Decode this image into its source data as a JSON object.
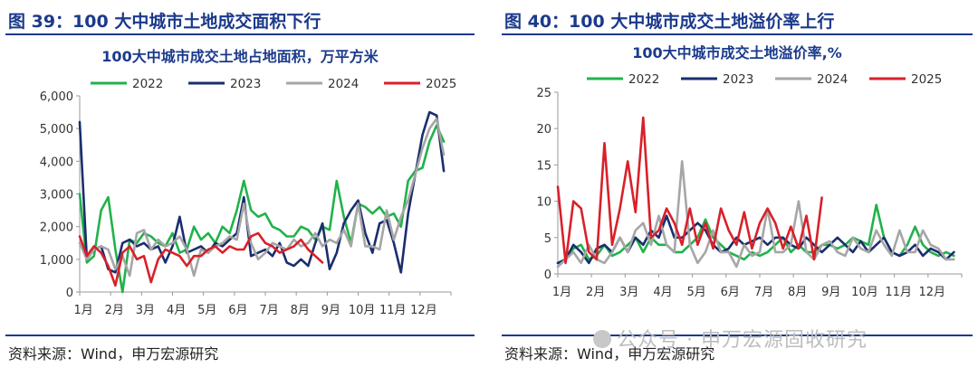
{
  "left": {
    "fig_title": "图 39：100 大中城市土地成交面积下行",
    "source": "资料来源：Wind，申万宏源研究"
  },
  "right": {
    "fig_title": "图 40：100 大中城市成交土地溢价率上行",
    "source": "资料来源：Wind，申万宏源研究"
  },
  "watermark": "公众号 · 申万宏源固收研究",
  "colors": {
    "2022": "#21b24b",
    "2023": "#1a2e6e",
    "2024": "#a6a6a6",
    "2025": "#d9202a",
    "accent": "#1b3a8c"
  },
  "chart_data": [
    {
      "type": "line",
      "title": "100大中城市成交土地占地面积，万平方米",
      "x_tick_labels": [
        "1月",
        "2月",
        "3月",
        "4月",
        "5月",
        "6月",
        "7月",
        "8月",
        "9月",
        "10月",
        "11月",
        "12月"
      ],
      "ylim": [
        0,
        6000
      ],
      "y_ticks": [
        0,
        1000,
        2000,
        3000,
        4000,
        5000,
        6000
      ],
      "y_tick_labels": [
        "0",
        "1,000",
        "2,000",
        "3,000",
        "4,000",
        "5,000",
        "6,000"
      ],
      "xlim": [
        0,
        52
      ],
      "legend_position": "top",
      "series": [
        {
          "name": "2022",
          "x": [
            0,
            1,
            2,
            3,
            4,
            5,
            6,
            7,
            8,
            9,
            10,
            11,
            12,
            13,
            14,
            15,
            16,
            17,
            18,
            19,
            20,
            21,
            22,
            23,
            24,
            25,
            26,
            27,
            28,
            29,
            30,
            31,
            32,
            33,
            34,
            35,
            36,
            37,
            38,
            39,
            40,
            41,
            42,
            43,
            44,
            45,
            46,
            47,
            48,
            49,
            50,
            51
          ],
          "values": [
            3000,
            900,
            1100,
            2500,
            2900,
            1300,
            0,
            1600,
            1500,
            1800,
            1700,
            1500,
            1400,
            1800,
            1200,
            1300,
            2000,
            1600,
            1800,
            1500,
            2000,
            1800,
            2500,
            3400,
            2500,
            2300,
            2400,
            2000,
            1900,
            1700,
            1700,
            2000,
            1900,
            1600,
            2000,
            1900,
            3400,
            2300,
            1500,
            2700,
            2600,
            2400,
            2600,
            2300,
            2400,
            2000,
            3400,
            3700,
            3800,
            4600,
            5100,
            4600
          ]
        },
        {
          "name": "2023",
          "x": [
            0,
            1,
            2,
            3,
            4,
            5,
            6,
            7,
            8,
            9,
            10,
            11,
            12,
            13,
            14,
            15,
            16,
            17,
            18,
            19,
            20,
            21,
            22,
            23,
            24,
            25,
            26,
            27,
            28,
            29,
            30,
            31,
            32,
            33,
            34,
            35,
            36,
            37,
            38,
            39,
            40,
            41,
            42,
            43,
            44,
            45,
            46,
            47,
            48,
            49,
            50,
            51
          ],
          "values": [
            5200,
            1000,
            1300,
            1400,
            700,
            600,
            1500,
            1600,
            1400,
            1500,
            1300,
            1400,
            900,
            1400,
            2300,
            1200,
            1300,
            1400,
            1200,
            1500,
            1400,
            1600,
            1800,
            2900,
            1100,
            1200,
            1300,
            1100,
            1500,
            900,
            800,
            1000,
            800,
            1500,
            2100,
            700,
            1200,
            2100,
            2500,
            2800,
            1800,
            1200,
            2100,
            2200,
            1500,
            600,
            2400,
            3600,
            4800,
            5500,
            5400,
            3700
          ]
        },
        {
          "name": "2024",
          "x": [
            0,
            1,
            2,
            3,
            4,
            5,
            6,
            7,
            8,
            9,
            10,
            11,
            12,
            13,
            14,
            15,
            16,
            17,
            18,
            19,
            20,
            21,
            22,
            23,
            24,
            25,
            26,
            27,
            28,
            29,
            30,
            31,
            32,
            33,
            34,
            35,
            36,
            37,
            38,
            39,
            40,
            41,
            42,
            43,
            44,
            45,
            46,
            47,
            48,
            49,
            50,
            51
          ],
          "values": [
            1500,
            1000,
            1300,
            1400,
            1300,
            700,
            1100,
            500,
            1800,
            1900,
            1300,
            1600,
            1400,
            1500,
            1700,
            1300,
            500,
            1300,
            1200,
            1400,
            1500,
            1700,
            1600,
            2700,
            1500,
            1000,
            1200,
            1500,
            1400,
            1300,
            1600,
            1400,
            1500,
            1800,
            1400,
            1600,
            1500,
            1900,
            1400,
            2700,
            1400,
            1400,
            1300,
            2500,
            1600,
            2300,
            2800,
            3600,
            4400,
            5000,
            5300,
            4200
          ]
        },
        {
          "name": "2025",
          "x": [
            0,
            1,
            2,
            3,
            4,
            5,
            6,
            7,
            8,
            9,
            10,
            11,
            12,
            13,
            14,
            15,
            16,
            17,
            18,
            19,
            20,
            21,
            22,
            23,
            24,
            25,
            26,
            27,
            28,
            29,
            30,
            31,
            32,
            33,
            34
          ],
          "values": [
            1700,
            1100,
            1400,
            1200,
            800,
            200,
            1200,
            1400,
            1000,
            1100,
            300,
            1000,
            1300,
            1200,
            1100,
            800,
            1100,
            1100,
            1300,
            1400,
            1200,
            1400,
            1300,
            1300,
            1700,
            1800,
            1500,
            1400,
            1200,
            1300,
            1400,
            1600,
            1300,
            1100,
            900
          ]
        }
      ]
    },
    {
      "type": "line",
      "title": "100大中城市成交土地溢价率,%",
      "x_tick_labels": [
        "1月",
        "2月",
        "3月",
        "4月",
        "5月",
        "6月",
        "7月",
        "8月",
        "9月",
        "10月",
        "11月",
        "12月"
      ],
      "ylim": [
        0,
        25
      ],
      "y_ticks": [
        0,
        5,
        10,
        15,
        20,
        25
      ],
      "y_tick_labels": [
        "0",
        "5",
        "10",
        "15",
        "20",
        "25"
      ],
      "xlim": [
        0,
        52
      ],
      "legend_position": "top",
      "series": [
        {
          "name": "2022",
          "x": [
            0,
            1,
            2,
            3,
            4,
            5,
            6,
            7,
            8,
            9,
            10,
            11,
            12,
            13,
            14,
            15,
            16,
            17,
            18,
            19,
            20,
            21,
            22,
            23,
            24,
            25,
            26,
            27,
            28,
            29,
            30,
            31,
            32,
            33,
            34,
            35,
            36,
            37,
            38,
            39,
            40,
            41,
            42,
            43,
            44,
            45,
            46,
            47,
            48,
            49,
            50,
            51
          ],
          "values": [
            1.5,
            2,
            3.5,
            4,
            2,
            2.5,
            4,
            2.5,
            3,
            4,
            5,
            3,
            5,
            4,
            4,
            3,
            3,
            4,
            5,
            7.5,
            5,
            4,
            3,
            2.5,
            2,
            3,
            2.5,
            3,
            4,
            5,
            3,
            4,
            3,
            3,
            4,
            4,
            3.5,
            4,
            5,
            4.5,
            4,
            9.5,
            5,
            3,
            2.5,
            4,
            6.5,
            4,
            3,
            2.5,
            3,
            2.5
          ]
        },
        {
          "name": "2023",
          "x": [
            0,
            1,
            2,
            3,
            4,
            5,
            6,
            7,
            8,
            9,
            10,
            11,
            12,
            13,
            14,
            15,
            16,
            17,
            18,
            19,
            20,
            21,
            22,
            23,
            24,
            25,
            26,
            27,
            28,
            29,
            30,
            31,
            32,
            33,
            34,
            35,
            36,
            37,
            38,
            39,
            40,
            41,
            42,
            43,
            44,
            45,
            46,
            47,
            48,
            49,
            50,
            51
          ],
          "values": [
            1.5,
            2,
            4,
            3,
            1.5,
            3.5,
            4,
            3,
            5,
            3,
            5,
            4,
            6,
            5,
            8,
            5,
            5,
            6,
            7,
            6,
            4,
            3,
            3.5,
            5,
            4,
            4.5,
            5,
            4,
            5,
            5,
            4,
            3.5,
            5,
            4,
            3,
            4,
            5,
            4,
            3,
            4.5,
            3,
            4,
            5,
            3,
            2.5,
            3,
            4,
            2.5,
            3.5,
            3,
            2,
            3
          ]
        },
        {
          "name": "2024",
          "x": [
            0,
            1,
            2,
            3,
            4,
            5,
            6,
            7,
            8,
            9,
            10,
            11,
            12,
            13,
            14,
            15,
            16,
            17,
            18,
            19,
            20,
            21,
            22,
            23,
            24,
            25,
            26,
            27,
            28,
            29,
            30,
            31,
            32,
            33,
            34,
            35,
            36,
            37,
            38,
            39,
            40,
            41,
            42,
            43,
            44,
            45,
            46,
            47,
            48,
            49,
            50,
            51
          ],
          "values": [
            1,
            2,
            3,
            1.5,
            4,
            2,
            1.5,
            3,
            5,
            3,
            6,
            7,
            4,
            8,
            4,
            3,
            15.5,
            4,
            1.5,
            3,
            6,
            3,
            3,
            1,
            4,
            2.5,
            3,
            9,
            3,
            3,
            4,
            10,
            3,
            2,
            4,
            4.5,
            3,
            2.5,
            5,
            3.5,
            3,
            6,
            4,
            2.5,
            6,
            3,
            3,
            6,
            4,
            3.5,
            2,
            2
          ]
        },
        {
          "name": "2025",
          "x": [
            0,
            1,
            2,
            3,
            4,
            5,
            6,
            7,
            8,
            9,
            10,
            11,
            12,
            13,
            14,
            15,
            16,
            17,
            18,
            19,
            20,
            21,
            22,
            23,
            24,
            25,
            26,
            27,
            28,
            29,
            30,
            31,
            32,
            33,
            34
          ],
          "values": [
            12,
            1.5,
            10,
            9,
            3,
            2,
            18,
            4,
            9,
            15.5,
            8.5,
            21.5,
            5,
            6,
            9,
            7,
            4,
            9,
            4,
            7,
            3.5,
            9,
            6,
            4,
            8.5,
            3.5,
            7,
            9,
            7,
            3.5,
            6.5,
            3.5,
            8,
            2,
            10.5
          ]
        }
      ]
    }
  ]
}
